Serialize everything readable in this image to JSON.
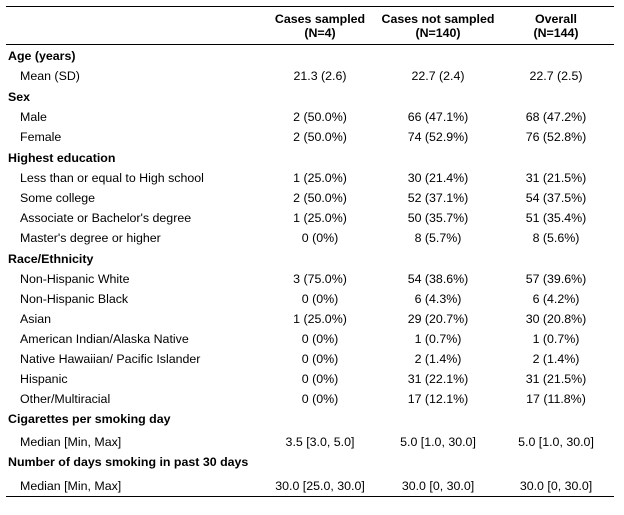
{
  "header": {
    "columns": [
      {
        "name": "Cases sampled",
        "n": "(N=4)"
      },
      {
        "name": "Cases not sampled",
        "n": "(N=140)"
      },
      {
        "name": "Overall",
        "n": "(N=144)"
      }
    ]
  },
  "sections": [
    {
      "title": "Age (years)",
      "rows": [
        {
          "label": "Mean (SD)",
          "values": [
            "21.3 (2.6)",
            "22.7 (2.4)",
            "22.7 (2.5)"
          ]
        }
      ]
    },
    {
      "title": "Sex",
      "rows": [
        {
          "label": "Male",
          "values": [
            "2 (50.0%)",
            "66 (47.1%)",
            "68 (47.2%)"
          ]
        },
        {
          "label": "Female",
          "values": [
            "2 (50.0%)",
            "74 (52.9%)",
            "76 (52.8%)"
          ]
        }
      ]
    },
    {
      "title": "Highest education",
      "rows": [
        {
          "label": "Less than or equal to High school",
          "values": [
            "1 (25.0%)",
            "30 (21.4%)",
            "31 (21.5%)"
          ]
        },
        {
          "label": "Some college",
          "values": [
            "2 (50.0%)",
            "52 (37.1%)",
            "54 (37.5%)"
          ]
        },
        {
          "label": "Associate or Bachelor's degree",
          "values": [
            "1 (25.0%)",
            "50 (35.7%)",
            "51 (35.4%)"
          ]
        },
        {
          "label": "Master's degree or higher",
          "values": [
            "0 (0%)",
            "8 (5.7%)",
            "8 (5.6%)"
          ]
        }
      ]
    },
    {
      "title": "Race/Ethnicity",
      "rows": [
        {
          "label": "Non-Hispanic White",
          "values": [
            "3 (75.0%)",
            "54 (38.6%)",
            "57 (39.6%)"
          ]
        },
        {
          "label": "Non-Hispanic Black",
          "values": [
            "0 (0%)",
            "6 (4.3%)",
            "6 (4.2%)"
          ]
        },
        {
          "label": "Asian",
          "values": [
            "1 (25.0%)",
            "29 (20.7%)",
            "30 (20.8%)"
          ]
        },
        {
          "label": "American Indian/Alaska Native",
          "values": [
            "0 (0%)",
            "1 (0.7%)",
            "1 (0.7%)"
          ]
        },
        {
          "label": "Native Hawaiian/ Pacific Islander",
          "values": [
            "0 (0%)",
            "2 (1.4%)",
            "2 (1.4%)"
          ]
        },
        {
          "label": "Hispanic",
          "values": [
            "0 (0%)",
            "31 (22.1%)",
            "31 (21.5%)"
          ]
        },
        {
          "label": "Other/Multiracial",
          "values": [
            "0 (0%)",
            "17 (12.1%)",
            "17 (11.8%)"
          ]
        }
      ]
    },
    {
      "title": "Cigarettes per smoking day",
      "rows": [
        {
          "label": "Median [Min, Max]",
          "values": [
            "3.5 [3.0, 5.0]",
            "5.0 [1.0, 30.0]",
            "5.0 [1.0, 30.0]"
          ]
        }
      ]
    },
    {
      "title": "Number of days smoking in past 30 days",
      "rows": [
        {
          "label": "Median [Min, Max]",
          "values": [
            "30.0 [25.0, 30.0]",
            "30.0 [0, 30.0]",
            "30.0 [0, 30.0]"
          ]
        }
      ]
    }
  ]
}
